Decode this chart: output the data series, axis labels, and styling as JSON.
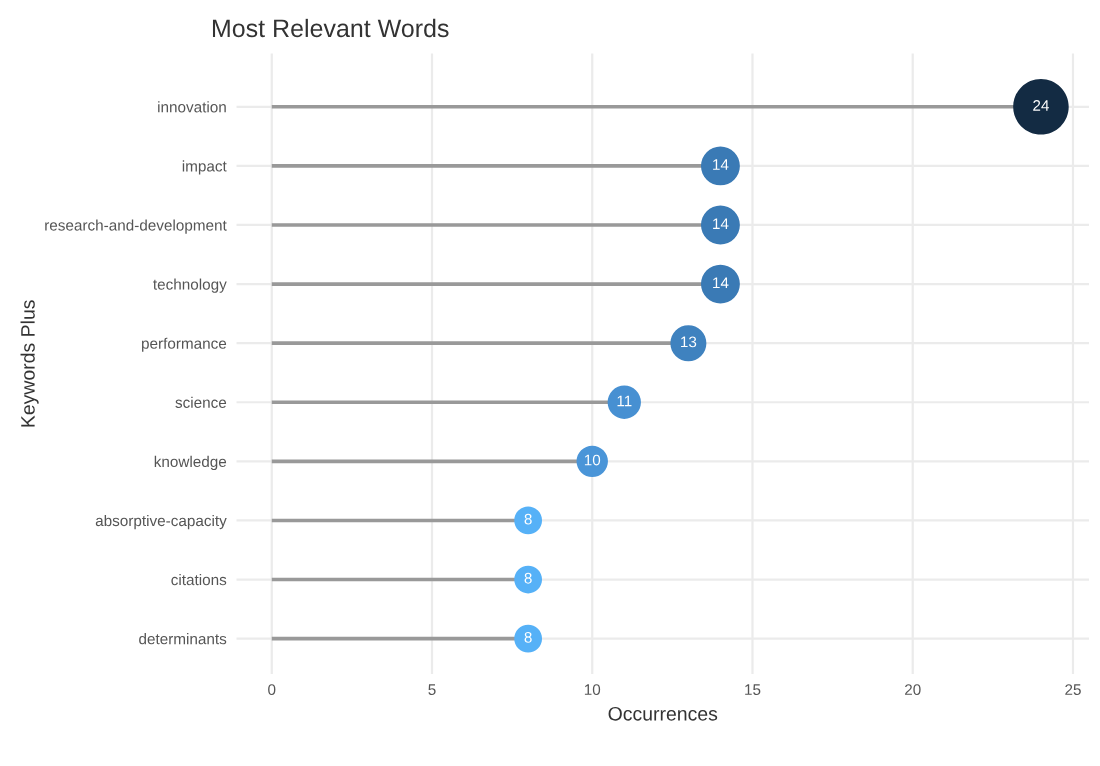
{
  "chart_data": {
    "type": "lollipop",
    "orientation": "horizontal",
    "title": "Most Relevant Words",
    "xlabel": "Occurrences",
    "ylabel": "Keywords Plus",
    "categories": [
      "innovation",
      "impact",
      "research-and-development",
      "technology",
      "performance",
      "science",
      "knowledge",
      "absorptive-capacity",
      "citations",
      "determinants"
    ],
    "values": [
      24,
      14,
      14,
      14,
      13,
      11,
      10,
      8,
      8,
      8
    ],
    "colors": [
      "#132b43",
      "#3a7ab5",
      "#3a7ab5",
      "#3a7ab5",
      "#3f82bf",
      "#4790d2",
      "#4a95d8",
      "#56b1f7",
      "#56b1f7",
      "#56b1f7"
    ],
    "sizes": [
      1,
      0.49,
      0.49,
      0.49,
      0.42,
      0.36,
      0.32,
      0.25,
      0.25,
      0.25
    ],
    "xlim": [
      -1.1,
      25.5
    ],
    "xticks": [
      0,
      5,
      10,
      15,
      20,
      25
    ],
    "data_labels": true,
    "grid": true
  }
}
